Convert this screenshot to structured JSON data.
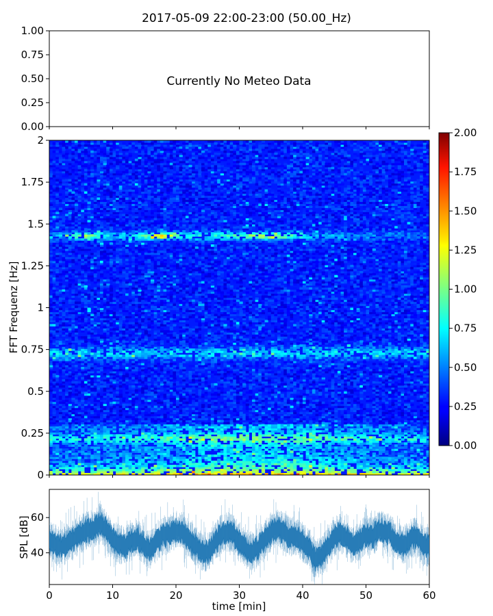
{
  "title": "2017-05-09 22:00-23:00 (50.00_Hz)",
  "chart_data": [
    {
      "type": "line",
      "panel": "meteo",
      "annotation": "Currently No Meteo Data",
      "ylim": [
        0,
        1
      ],
      "yticks": [
        "0.00",
        "0.25",
        "0.50",
        "0.75",
        "1.00"
      ],
      "xlim": [
        0,
        60
      ],
      "series": []
    },
    {
      "type": "heatmap",
      "panel": "spectrogram",
      "ylabel": "FFT Frequenz [Hz]",
      "xlim": [
        0,
        60
      ],
      "ylim": [
        0,
        2
      ],
      "yticks": [
        "0",
        "0.25",
        "0.5",
        "0.75",
        "1",
        "1.25",
        "1.5",
        "1.75",
        "2"
      ],
      "colormap": "jet",
      "clim": [
        0,
        2
      ],
      "colorbar_ticks": [
        "0.00",
        "0.25",
        "0.50",
        "0.75",
        "1.00",
        "1.25",
        "1.50",
        "1.75",
        "2.00"
      ],
      "features": [
        {
          "band": "0.00-0.05 Hz",
          "level": "high (1.5-2.0)",
          "time": "throughout"
        },
        {
          "band": "0.05-0.30 Hz",
          "level": "moderate (0.7-1.3)",
          "time": "throughout, strongest 20-45 min"
        },
        {
          "band": "~0.70-0.78 Hz",
          "level": "moderate (0.8-1.2)",
          "time": "0-60 min"
        },
        {
          "band": "~1.40-1.45 Hz",
          "level": "elevated (1.0-1.8)",
          "time": "5-40 min, peaks near 6, 18, 35 min"
        }
      ]
    },
    {
      "type": "line",
      "panel": "spl",
      "ylabel": "SPL [dB]",
      "xlabel": "time [min]",
      "xlim": [
        0,
        60
      ],
      "ylim": [
        22,
        76
      ],
      "xticks": [
        0,
        10,
        20,
        30,
        40,
        50,
        60
      ],
      "yticks": [
        40,
        60
      ],
      "color": "#1f77b4",
      "series": [
        {
          "x": [
            0,
            1,
            2,
            3,
            4,
            5,
            6,
            7,
            8,
            9,
            10,
            11,
            12,
            13,
            14,
            15,
            16,
            17,
            18,
            19,
            20,
            21,
            22,
            23,
            24,
            25,
            26,
            27,
            28,
            29,
            30,
            31,
            32,
            33,
            34,
            35,
            36,
            37,
            38,
            39,
            40,
            41,
            42,
            43,
            44,
            45,
            46,
            47,
            48,
            49,
            50,
            51,
            52,
            53,
            54,
            55,
            56,
            57,
            58,
            59,
            60
          ],
          "values": [
            47,
            45,
            43,
            46,
            48,
            51,
            52,
            54,
            57,
            53,
            47,
            45,
            44,
            47,
            48,
            44,
            42,
            47,
            50,
            51,
            53,
            52,
            48,
            44,
            41,
            40,
            45,
            50,
            52,
            51,
            46,
            42,
            41,
            43,
            47,
            52,
            54,
            52,
            49,
            50,
            46,
            43,
            36,
            38,
            44,
            49,
            51,
            48,
            44,
            47,
            50,
            49,
            53,
            52,
            50,
            46,
            44,
            48,
            49,
            44,
            43
          ]
        }
      ]
    }
  ]
}
